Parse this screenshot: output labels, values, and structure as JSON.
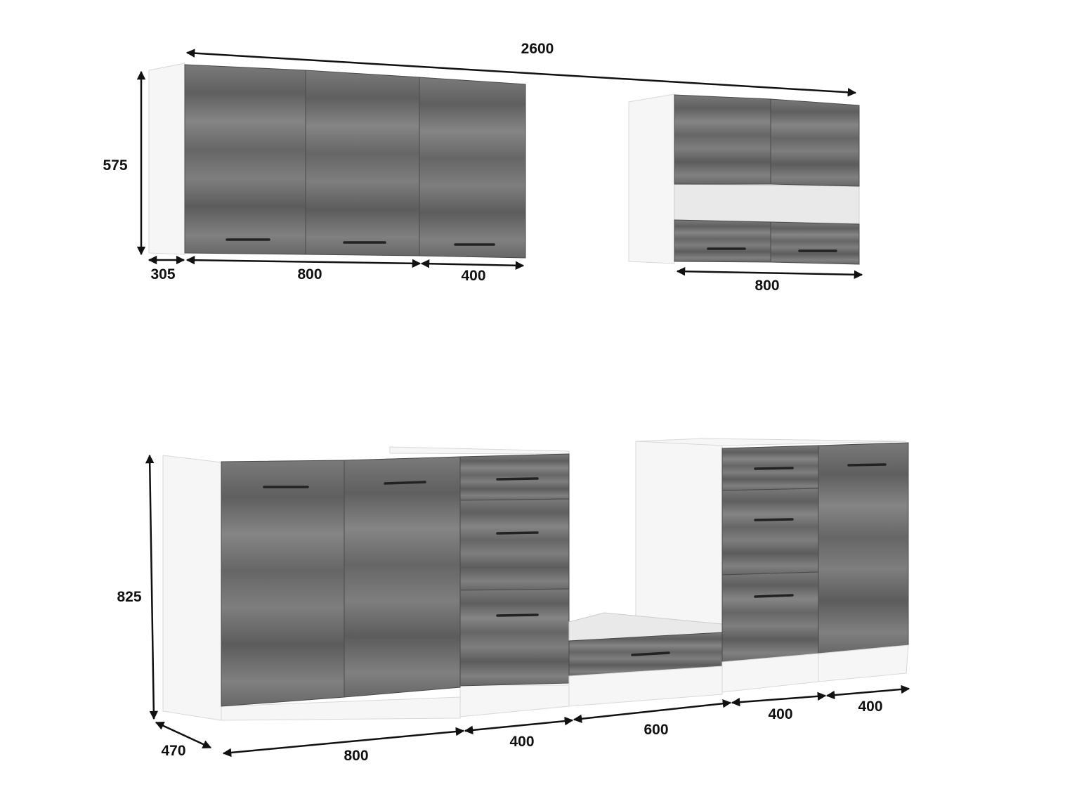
{
  "colors": {
    "wood": "#707070",
    "carcass": "#f6f6f6",
    "handle": "#222222",
    "dimension": "#111111"
  },
  "upper": {
    "total_width": "2600",
    "height": "575",
    "depth": "305",
    "left_width_a": "800",
    "left_width_b": "400",
    "right_width": "800"
  },
  "lower": {
    "height": "825",
    "depth": "470",
    "widths": [
      "800",
      "400",
      "600",
      "400",
      "400"
    ]
  }
}
